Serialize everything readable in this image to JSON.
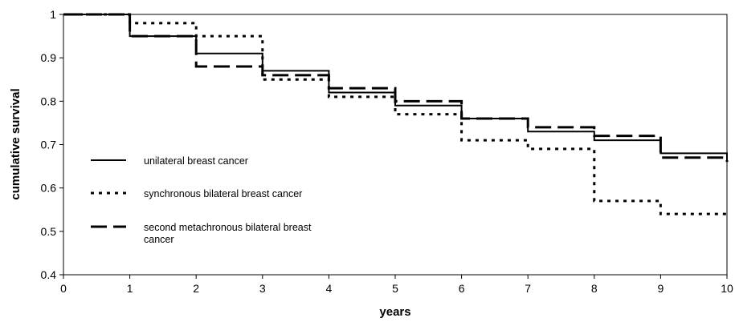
{
  "chart_data": {
    "type": "line",
    "step": true,
    "title": "",
    "xlabel": "years",
    "ylabel": "cumulative survival",
    "xlim": [
      0,
      10
    ],
    "ylim": [
      0.4,
      1
    ],
    "x_ticks": [
      "0",
      "1",
      "2",
      "3",
      "4",
      "5",
      "6",
      "7",
      "8",
      "9",
      "10"
    ],
    "y_ticks": [
      "0.4",
      "0.5",
      "0.6",
      "0.7",
      "0.8",
      "0.9",
      "1"
    ],
    "grid": false,
    "legend_position": "left",
    "x": [
      0,
      1,
      2,
      3,
      4,
      5,
      6,
      7,
      8,
      9,
      10
    ],
    "series": [
      {
        "name": "unilateral breast cancer",
        "style": "solid",
        "values": [
          1.0,
          0.95,
          0.91,
          0.87,
          0.82,
          0.79,
          0.76,
          0.73,
          0.71,
          0.68,
          0.66
        ]
      },
      {
        "name": "synchronous bilateral breast cancer",
        "style": "dotted",
        "values": [
          1.0,
          0.98,
          0.95,
          0.85,
          0.81,
          0.77,
          0.71,
          0.69,
          0.57,
          0.54,
          0.54
        ]
      },
      {
        "name_lines": [
          "second metachronous bilateral breast",
          "cancer"
        ],
        "style": "dashed",
        "values": [
          1.0,
          0.95,
          0.88,
          0.86,
          0.83,
          0.8,
          0.76,
          0.74,
          0.72,
          0.67,
          0.66
        ]
      }
    ]
  }
}
